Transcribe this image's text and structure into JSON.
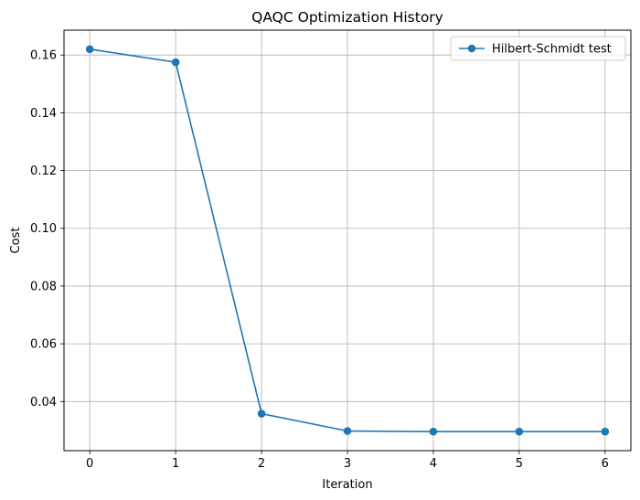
{
  "chart_data": {
    "type": "line",
    "title": "QAQC Optimization History",
    "xlabel": "Iteration",
    "ylabel": "Cost",
    "x": [
      0,
      1,
      2,
      3,
      4,
      5,
      6
    ],
    "series": [
      {
        "name": "Hilbert-Schmidt test",
        "values": [
          0.162,
          0.1575,
          0.0358,
          0.0298,
          0.0296,
          0.0296,
          0.0296
        ],
        "color": "#1f77b4",
        "marker": "circle"
      }
    ],
    "xticks": [
      "0",
      "1",
      "2",
      "3",
      "4",
      "5",
      "6"
    ],
    "yticks": [
      "0.04",
      "0.06",
      "0.08",
      "0.10",
      "0.12",
      "0.14",
      "0.16"
    ],
    "xlim": [
      -0.3,
      6.3
    ],
    "ylim": [
      0.023,
      0.1686
    ],
    "grid": true,
    "legend_position": "top-right"
  }
}
